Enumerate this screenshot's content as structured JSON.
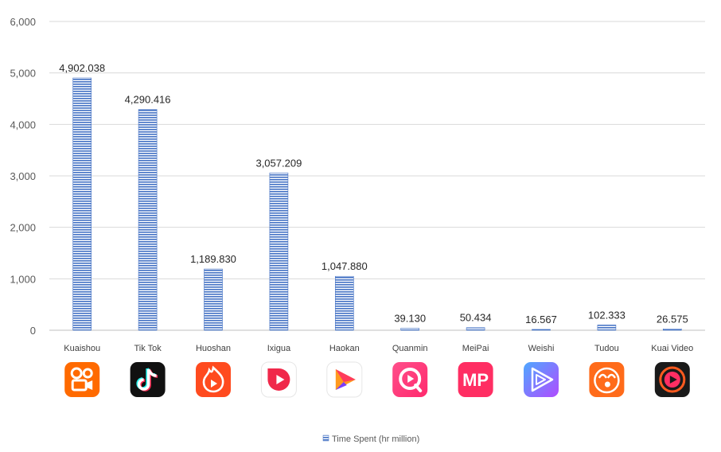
{
  "chart_data": {
    "type": "bar",
    "categories": [
      "Kuaishou",
      "Tik Tok",
      "Huoshan",
      "Ixigua",
      "Haokan",
      "Quanmin",
      "MeiPai",
      "Weishi",
      "Tudou",
      "Kuai Video"
    ],
    "series": [
      {
        "name": "Time Spent (hr million)",
        "values": [
          4902.038,
          4290.416,
          1189.83,
          3057.209,
          1047.88,
          39.13,
          50.434,
          16.567,
          102.333,
          26.575
        ],
        "labels": [
          "4,902.038",
          "4,290.416",
          "1,189.830",
          "3,057.209",
          "1,047.880",
          "39.130",
          "50.434",
          "16.567",
          "102.333",
          "26.575"
        ],
        "color": "#4472c4"
      }
    ],
    "yticks": [
      "0",
      "1,000",
      "2,000",
      "3,000",
      "4,000",
      "5,000",
      "6,000"
    ],
    "ylim": [
      0,
      6000
    ],
    "grid": true,
    "legend": "bottom-center",
    "title": "",
    "xlabel": "",
    "ylabel": ""
  },
  "app_icons": [
    {
      "name": "kuaishou-icon",
      "bg": "#ff6a00",
      "fg": "#ffffff"
    },
    {
      "name": "tiktok-icon",
      "bg": "#111111",
      "fg": "#ffffff"
    },
    {
      "name": "huoshan-icon",
      "bg": "#ff4b1f",
      "fg": "#ffffff"
    },
    {
      "name": "ixigua-icon",
      "bg": "#ffffff",
      "fg": "#f0284a"
    },
    {
      "name": "haokan-icon",
      "bg": "#ffffff",
      "fg": "#ff3b5c"
    },
    {
      "name": "quanmin-icon",
      "bg": "#ff2d7a",
      "fg": "#ffffff"
    },
    {
      "name": "meipai-icon",
      "bg": "#ff2e63",
      "fg": "#ffffff",
      "text": "MP"
    },
    {
      "name": "weishi-icon",
      "bg": "#7b5cff",
      "fg": "#ffffff"
    },
    {
      "name": "tudou-icon",
      "bg": "#ff6b1a",
      "fg": "#ffffff"
    },
    {
      "name": "kuai-video-icon",
      "bg": "#1a1a1a",
      "fg": "#ff5a1f"
    }
  ]
}
